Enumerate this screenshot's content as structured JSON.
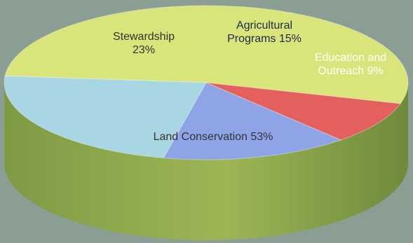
{
  "chart_data": {
    "type": "pie",
    "title": "",
    "series": [
      {
        "name": "Land Conservation",
        "label_lines": [
          "Land Conservation 53%"
        ],
        "value": 53,
        "color": "#d9e57a"
      },
      {
        "name": "Stewardship",
        "label_lines": [
          "Stewardship",
          "23%"
        ],
        "value": 23,
        "color": "#a9d6e3"
      },
      {
        "name": "Agricultural Programs",
        "label_lines": [
          "Agricultural",
          "Programs 15%"
        ],
        "value": 15,
        "color": "#8fa4e6"
      },
      {
        "name": "Education and Outreach",
        "label_lines": [
          "Education and",
          "Outreach 9%"
        ],
        "value": 9,
        "color": "#e4605f"
      }
    ],
    "style": "3d-tilted",
    "legend": "none"
  }
}
